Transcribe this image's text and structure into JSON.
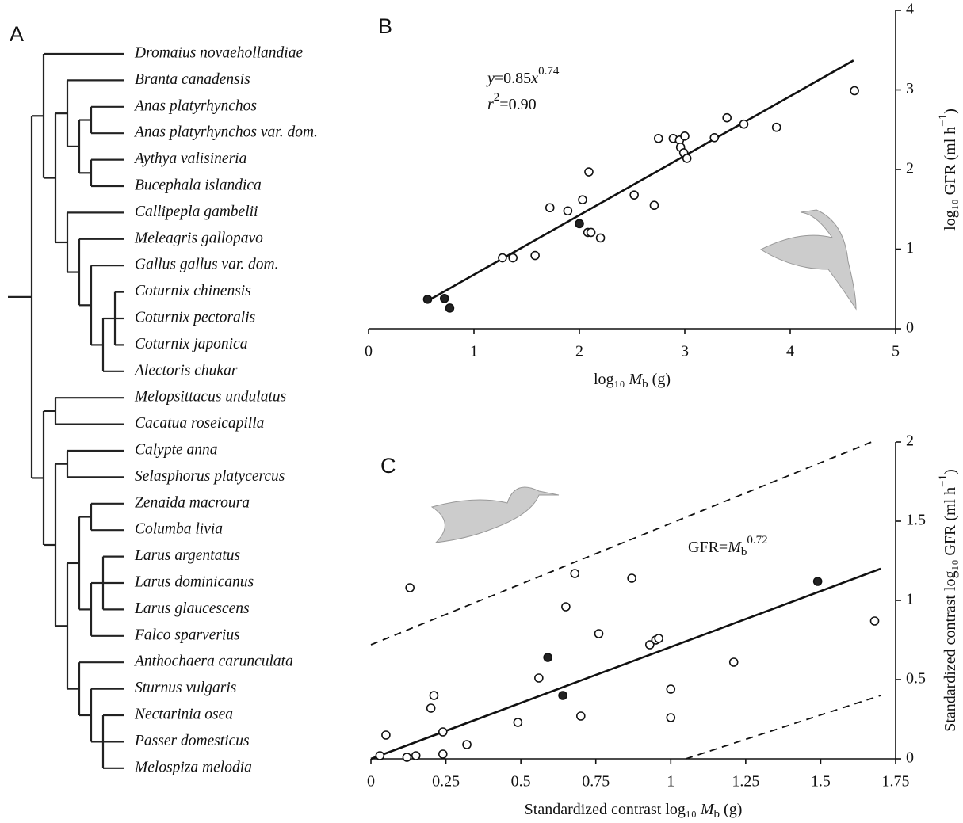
{
  "panel_a": {
    "label": "A",
    "species": [
      "Dromaius novaehollandiae",
      "Branta canadensis",
      "Anas platyrhynchos",
      "Anas platyrhynchos var. dom.",
      "Aythya valisineria",
      "Bucephala islandica",
      "Callipepla gambelii",
      "Meleagris gallopavo",
      "Gallus gallus var. dom.",
      "Coturnix chinensis",
      "Coturnix pectoralis",
      "Coturnix japonica",
      "Alectoris chukar",
      "Melopsittacus undulatus",
      "Cacatua roseicapilla",
      "Calypte anna",
      "Selasphorus platycercus",
      "Zenaida macroura",
      "Columba livia",
      "Larus argentatus",
      "Larus dominicanus",
      "Larus glaucescens",
      "Falco sparverius",
      "Anthochaera carunculata",
      "Sturnus vulgaris",
      "Nectarinia osea",
      "Passer domesticus",
      "Melospiza melodia"
    ]
  },
  "chart_data": [
    {
      "type": "scatter",
      "panel": "B",
      "equation": [
        "y",
        "=0.85",
        "x",
        "0.74"
      ],
      "r2": [
        "r",
        "2",
        "=0.90"
      ],
      "xlabel": [
        "log₁₀ ",
        "M",
        "b",
        " (g)"
      ],
      "ylabel": [
        "log₁₀ GFR (ml h",
        "−1",
        ")"
      ],
      "xlim": [
        0,
        5
      ],
      "ylim": [
        0,
        4
      ],
      "xticks": [
        0,
        1,
        2,
        3,
        4,
        5
      ],
      "yticks": [
        0,
        1,
        2,
        3,
        4
      ],
      "series": [
        {
          "fill": "#ffffff",
          "x": [
            1.27,
            1.37,
            1.58,
            1.72,
            1.89,
            2.03,
            2.08,
            2.11,
            2.2,
            2.09,
            2.52,
            2.71,
            2.75,
            2.89,
            2.95,
            2.96,
            2.99,
            3.0,
            3.02,
            3.28,
            3.4,
            3.56,
            3.87,
            4.61
          ],
          "values": [
            0.89,
            0.89,
            0.92,
            1.52,
            1.48,
            1.62,
            1.21,
            1.21,
            1.14,
            1.97,
            1.68,
            1.55,
            2.39,
            2.39,
            2.37,
            2.28,
            2.21,
            2.42,
            2.14,
            2.4,
            2.65,
            2.57,
            2.53,
            2.99
          ]
        },
        {
          "fill": "#222222",
          "x": [
            0.56,
            0.72,
            0.77,
            2.0
          ],
          "values": [
            0.37,
            0.38,
            0.26,
            1.32
          ]
        }
      ],
      "lines": [
        {
          "style": "solid",
          "x": [
            0.56,
            4.6
          ],
          "values": [
            0.35,
            3.37
          ]
        }
      ]
    },
    {
      "type": "scatter",
      "panel": "C",
      "annotation": [
        "GFR=",
        "M",
        "b",
        "0.72"
      ],
      "xlabel": [
        "Standardized contrast log₁₀ ",
        "M",
        "b",
        " (g)"
      ],
      "ylabel": [
        "Standardized contrast log₁₀ GFR (ml h",
        "−1",
        ")"
      ],
      "xlim": [
        0,
        1.75
      ],
      "ylim": [
        0,
        2
      ],
      "xticks": [
        0,
        0.25,
        0.5,
        0.75,
        1,
        1.25,
        1.5,
        1.75
      ],
      "yticks": [
        0,
        0.5,
        1,
        1.5,
        2
      ],
      "series": [
        {
          "fill": "#ffffff",
          "x": [
            0.03,
            0.05,
            0.12,
            0.13,
            0.15,
            0.2,
            0.21,
            0.24,
            0.24,
            0.32,
            0.49,
            0.56,
            0.65,
            0.68,
            0.7,
            0.76,
            0.87,
            0.93,
            0.95,
            0.96,
            1.0,
            1.0,
            1.21,
            1.68
          ],
          "values": [
            0.02,
            0.15,
            0.01,
            1.08,
            0.02,
            0.32,
            0.4,
            0.03,
            0.17,
            0.09,
            0.23,
            0.51,
            0.96,
            1.17,
            0.27,
            0.79,
            1.14,
            0.72,
            0.75,
            0.76,
            0.44,
            0.26,
            0.61,
            0.87
          ]
        },
        {
          "fill": "#222222",
          "x": [
            0.59,
            0.64,
            1.49
          ],
          "values": [
            0.64,
            0.4,
            1.12
          ]
        }
      ],
      "lines": [
        {
          "style": "solid",
          "x": [
            0,
            1.7
          ],
          "values": [
            0,
            1.2
          ]
        },
        {
          "style": "dashed",
          "x": [
            0,
            1.67
          ],
          "values": [
            0.72,
            2.0
          ]
        },
        {
          "style": "dashed",
          "x": [
            1.05,
            1.7
          ],
          "values": [
            0,
            0.4
          ]
        }
      ]
    }
  ]
}
